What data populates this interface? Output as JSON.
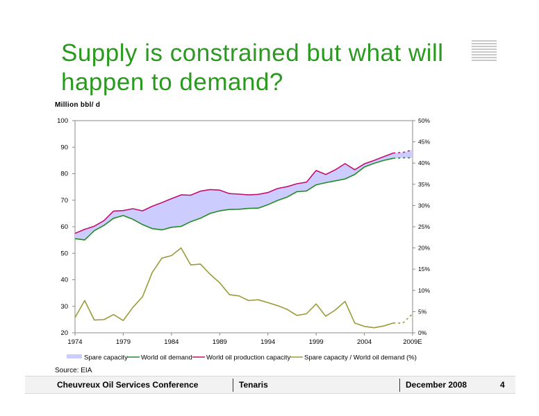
{
  "title": {
    "line1": "Supply is constrained but what will",
    "line2": "happen to demand?"
  },
  "unit_label": "Million bbl/ d",
  "source": "Source:  EIA",
  "footer": {
    "conference": "Cheuvreux Oil Services Conference",
    "company": "Tenaris",
    "date": "December 2008",
    "page": "4"
  },
  "colors": {
    "title": "#2a9a1f",
    "spare_capacity": "#ccccff",
    "world_oil_demand": "#1e8c23",
    "world_oil_production_capacity": "#c0106e",
    "spare_ratio": "#9a9a3a"
  },
  "chart_data": {
    "type": "line",
    "x": [
      1974,
      1975,
      1976,
      1977,
      1978,
      1979,
      1980,
      1981,
      1982,
      1983,
      1984,
      1985,
      1986,
      1987,
      1988,
      1989,
      1990,
      1991,
      1992,
      1993,
      1994,
      1995,
      1996,
      1997,
      1998,
      1999,
      2000,
      2001,
      2002,
      2003,
      2004,
      2005,
      2006,
      2007,
      2008,
      2009
    ],
    "x_tick_labels": [
      "1974",
      "1979",
      "1984",
      "1989",
      "1994",
      "1999",
      "2004",
      "2009E"
    ],
    "x_ticks": [
      1974,
      1979,
      1984,
      1989,
      1994,
      1999,
      2004,
      2009
    ],
    "xlim": [
      1974,
      2009
    ],
    "ylim": [
      20,
      100
    ],
    "y_ticks": [
      20,
      30,
      40,
      50,
      60,
      70,
      80,
      90,
      100
    ],
    "y2lim": [
      0,
      50
    ],
    "y2_ticks": [
      "0%",
      "5%",
      "10%",
      "15%",
      "20%",
      "25%",
      "30%",
      "35%",
      "40%",
      "45%",
      "50%"
    ],
    "forecast_from": 2007,
    "series": [
      {
        "name": "Spare capacity",
        "type": "area",
        "note_between": [
          "World oil demand",
          "World oil production capacity"
        ]
      },
      {
        "name": "World oil demand",
        "axis": "left",
        "type": "line",
        "values": [
          55.5,
          55.0,
          58.5,
          60.5,
          63.2,
          64.2,
          62.8,
          60.8,
          59.3,
          58.8,
          59.8,
          60.1,
          61.9,
          63.2,
          65.0,
          66.0,
          66.5,
          66.6,
          66.9,
          67.0,
          68.3,
          69.9,
          71.2,
          73.2,
          73.5,
          75.8,
          76.6,
          77.3,
          78.0,
          79.7,
          82.5,
          83.9,
          85.0,
          85.8,
          86.0,
          86.0
        ]
      },
      {
        "name": "World oil production capacity",
        "axis": "left",
        "type": "line",
        "values": [
          57.5,
          59.0,
          60.2,
          62.3,
          65.9,
          66.1,
          66.8,
          66.0,
          67.7,
          69.1,
          70.6,
          72.0,
          71.9,
          73.4,
          74.0,
          73.8,
          72.5,
          72.3,
          72.0,
          72.2,
          72.9,
          74.4,
          75.1,
          76.2,
          76.8,
          81.2,
          79.7,
          81.5,
          83.8,
          81.5,
          83.7,
          85.0,
          86.4,
          87.8,
          88.0,
          89.0
        ]
      },
      {
        "name": "Spare capacity / World oil demand (%)",
        "axis": "right",
        "type": "line",
        "values": [
          3.6,
          7.6,
          3.0,
          3.1,
          4.3,
          2.9,
          6.0,
          8.5,
          14.2,
          17.6,
          18.2,
          20.0,
          16.0,
          16.2,
          13.8,
          11.8,
          9.0,
          8.7,
          7.6,
          7.8,
          7.1,
          6.4,
          5.5,
          4.1,
          4.5,
          6.8,
          3.9,
          5.4,
          7.4,
          2.3,
          1.5,
          1.2,
          1.6,
          2.3,
          2.3,
          4.5
        ]
      }
    ],
    "legend": [
      "Spare capacity",
      "World oil demand",
      "World oil production capacity",
      "Spare capacity / World oil demand (%)"
    ],
    "legend_position": "bottom",
    "grid": false
  }
}
